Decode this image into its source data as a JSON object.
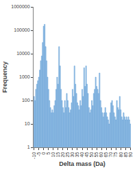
{
  "chart_data": {
    "type": "bar",
    "xlabel": "Delta mass (Da)",
    "ylabel": "Frequency",
    "x": [
      -10,
      -9,
      -8,
      -7,
      -6,
      -5,
      -4,
      -3,
      -2,
      -1,
      0,
      1,
      2,
      3,
      4,
      5,
      6,
      7,
      8,
      9,
      10,
      11,
      12,
      13,
      14,
      15,
      16,
      17,
      18,
      19,
      20,
      21,
      22,
      23,
      24,
      25,
      26,
      27,
      28,
      29,
      30,
      31,
      32,
      33,
      34,
      35,
      36,
      37,
      38,
      39,
      40,
      41,
      42,
      43,
      44,
      45,
      46,
      47,
      48,
      49,
      50,
      51,
      52,
      53,
      54,
      55,
      56,
      57,
      58,
      59,
      60,
      61,
      62,
      63,
      64,
      65,
      66,
      67,
      68,
      69,
      70,
      71,
      72,
      73,
      74,
      75,
      76,
      77,
      78,
      79,
      80,
      81,
      82,
      83,
      84,
      85,
      86,
      87,
      88,
      89,
      90
    ],
    "values": [
      150,
      100,
      300,
      500,
      700,
      1000,
      2000,
      5000,
      8000,
      30000,
      150000,
      180000,
      20000,
      5000,
      1000,
      300,
      100,
      50,
      30,
      40,
      30,
      60,
      100,
      300,
      1000,
      500,
      20000,
      3000,
      300,
      100,
      50,
      30,
      100,
      50,
      200,
      100,
      50,
      30,
      40,
      80,
      300,
      150,
      3000,
      500,
      200,
      80,
      60,
      40,
      100,
      60,
      300,
      150,
      2500,
      400,
      3000,
      500,
      200,
      50,
      30,
      40,
      100,
      60,
      200,
      300,
      1000,
      400,
      300,
      200,
      1500,
      100,
      50,
      30,
      20,
      30,
      50,
      30,
      20,
      15,
      10,
      30,
      80,
      100,
      60,
      30,
      20,
      15,
      100,
      50,
      40,
      150,
      40,
      20,
      15,
      30,
      20,
      15,
      20,
      15,
      20,
      15,
      10
    ],
    "color": "#9dc3e6",
    "log": "y",
    "grid": false,
    "xlim": [
      -10.5,
      90.5
    ],
    "xticks": [
      -10,
      -5,
      0,
      5,
      10,
      15,
      20,
      25,
      30,
      35,
      40,
      45,
      50,
      55,
      60,
      65,
      70,
      75,
      80,
      85,
      90
    ],
    "ylim": [
      1,
      1000000
    ],
    "yticks": [
      1,
      10,
      100,
      1000,
      10000,
      100000,
      1000000
    ]
  }
}
